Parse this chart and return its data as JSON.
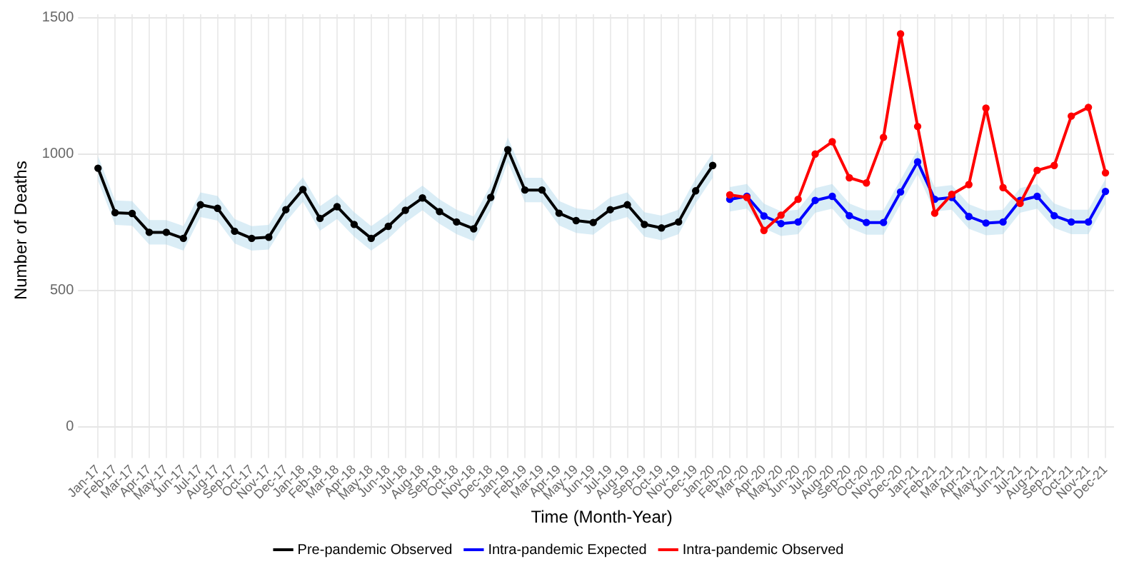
{
  "chart_data": {
    "type": "line",
    "xlabel": "Time (Month-Year)",
    "ylabel": "Number of Deaths",
    "categories": [
      "Jan-17",
      "Feb-17",
      "Mar-17",
      "Apr-17",
      "May-17",
      "Jun-17",
      "Jul-17",
      "Aug-17",
      "Sep-17",
      "Oct-17",
      "Nov-17",
      "Dec-17",
      "Jan-18",
      "Feb-18",
      "Mar-18",
      "Apr-18",
      "May-18",
      "Jun-18",
      "Jul-18",
      "Aug-18",
      "Sep-18",
      "Oct-18",
      "Nov-18",
      "Dec-18",
      "Jan-19",
      "Feb-19",
      "Mar-19",
      "Apr-19",
      "May-19",
      "Jun-19",
      "Jul-19",
      "Aug-19",
      "Sep-19",
      "Oct-19",
      "Nov-19",
      "Dec-19",
      "Jan-20",
      "Feb-20",
      "Mar-20",
      "Apr-20",
      "May-20",
      "Jun-20",
      "Jul-20",
      "Aug-20",
      "Sep-20",
      "Oct-20",
      "Nov-20",
      "Dec-20",
      "Jan-21",
      "Feb-21",
      "Mar-21",
      "Apr-21",
      "May-21",
      "Jun-21",
      "Jul-21",
      "Aug-21",
      "Sep-21",
      "Oct-21",
      "Nov-21",
      "Dec-21"
    ],
    "series": [
      {
        "name": "Pre-pandemic Observed",
        "color": "#000000",
        "values": [
          948,
          785,
          782,
          713,
          713,
          691,
          814,
          801,
          717,
          691,
          695,
          796,
          870,
          764,
          807,
          742,
          691,
          735,
          794,
          839,
          789,
          751,
          726,
          841,
          1016,
          868,
          868,
          783,
          756,
          749,
          796,
          814,
          742,
          729,
          751,
          865,
          958,
          null,
          null,
          null,
          null,
          null,
          null,
          null,
          null,
          null,
          null,
          null,
          null,
          null,
          null,
          null,
          null,
          null,
          null,
          null,
          null,
          null,
          null,
          null
        ],
        "lower": [
          903,
          740,
          737,
          668,
          668,
          646,
          769,
          756,
          672,
          646,
          650,
          751,
          825,
          719,
          762,
          697,
          646,
          690,
          749,
          794,
          744,
          706,
          681,
          796,
          971,
          823,
          823,
          738,
          711,
          704,
          751,
          769,
          697,
          684,
          706,
          820,
          913,
          null,
          null,
          null,
          null,
          null,
          null,
          null,
          null,
          null,
          null,
          null,
          null,
          null,
          null,
          null,
          null,
          null,
          null,
          null,
          null,
          null,
          null,
          null
        ],
        "upper": [
          993,
          830,
          827,
          758,
          758,
          736,
          859,
          846,
          762,
          736,
          740,
          841,
          915,
          809,
          852,
          787,
          736,
          780,
          839,
          884,
          834,
          796,
          771,
          886,
          1061,
          913,
          913,
          828,
          801,
          794,
          841,
          859,
          787,
          774,
          796,
          910,
          1003,
          null,
          null,
          null,
          null,
          null,
          null,
          null,
          null,
          null,
          null,
          null,
          null,
          null,
          null,
          null,
          null,
          null,
          null,
          null,
          null,
          null,
          null,
          null
        ]
      },
      {
        "name": "Intra-pandemic Expected",
        "color": "#0000ff",
        "values": [
          null,
          null,
          null,
          null,
          null,
          null,
          null,
          null,
          null,
          null,
          null,
          null,
          null,
          null,
          null,
          null,
          null,
          null,
          null,
          null,
          null,
          null,
          null,
          null,
          null,
          null,
          null,
          null,
          null,
          null,
          null,
          null,
          null,
          null,
          null,
          null,
          null,
          834,
          845,
          773,
          745,
          751,
          830,
          845,
          774,
          749,
          749,
          861,
          971,
          834,
          841,
          771,
          747,
          751,
          830,
          845,
          774,
          751,
          751,
          863
        ],
        "lower": [
          null,
          null,
          null,
          null,
          null,
          null,
          null,
          null,
          null,
          null,
          null,
          null,
          null,
          null,
          null,
          null,
          null,
          null,
          null,
          null,
          null,
          null,
          null,
          null,
          null,
          null,
          null,
          null,
          null,
          null,
          null,
          null,
          null,
          null,
          null,
          null,
          null,
          789,
          800,
          728,
          700,
          706,
          785,
          800,
          729,
          704,
          704,
          816,
          926,
          789,
          796,
          726,
          702,
          706,
          785,
          800,
          729,
          706,
          706,
          818
        ],
        "upper": [
          null,
          null,
          null,
          null,
          null,
          null,
          null,
          null,
          null,
          null,
          null,
          null,
          null,
          null,
          null,
          null,
          null,
          null,
          null,
          null,
          null,
          null,
          null,
          null,
          null,
          null,
          null,
          null,
          null,
          null,
          null,
          null,
          null,
          null,
          null,
          null,
          null,
          879,
          890,
          818,
          790,
          796,
          875,
          890,
          819,
          794,
          794,
          906,
          1016,
          879,
          886,
          816,
          792,
          796,
          875,
          890,
          819,
          796,
          796,
          908
        ]
      },
      {
        "name": "Intra-pandemic Observed",
        "color": "#ff0000",
        "values": [
          null,
          null,
          null,
          null,
          null,
          null,
          null,
          null,
          null,
          null,
          null,
          null,
          null,
          null,
          null,
          null,
          null,
          null,
          null,
          null,
          null,
          null,
          null,
          null,
          null,
          null,
          null,
          null,
          null,
          null,
          null,
          null,
          null,
          null,
          null,
          null,
          null,
          850,
          841,
          720,
          776,
          834,
          1000,
          1045,
          913,
          894,
          1061,
          1440,
          1101,
          783,
          852,
          888,
          1168,
          877,
          819,
          940,
          958,
          1139,
          1171,
          931
        ]
      }
    ],
    "ylim": [
      -72,
      1512
    ],
    "yticks": [
      0,
      500,
      1000,
      1500
    ],
    "grid": true,
    "legend": "bottom",
    "marker": "circle",
    "line_style": "solid"
  }
}
